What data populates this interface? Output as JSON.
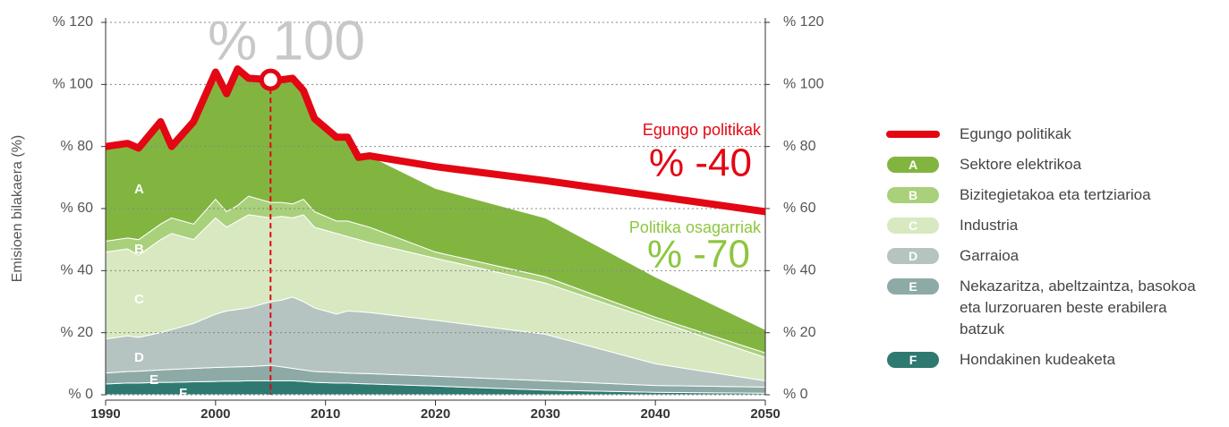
{
  "chart_data": {
    "type": "area",
    "y_label": "Emisioen bilakaera  (%)",
    "x": [
      1990,
      1992,
      1993,
      1995,
      1996,
      1998,
      2000,
      2001,
      2002,
      2003,
      2005,
      2006,
      2007,
      2008,
      2009,
      2011,
      2012,
      2013,
      2014,
      2020,
      2030,
      2040,
      2050
    ],
    "xlim": [
      1990,
      2050
    ],
    "xticks": [
      1990,
      2000,
      2010,
      2020,
      2030,
      2040,
      2050
    ],
    "ylim": [
      0,
      120
    ],
    "yticks": [
      {
        "value": 0,
        "label": "% 0"
      },
      {
        "value": 20,
        "label": "% 20"
      },
      {
        "value": 40,
        "label": "% 40"
      },
      {
        "value": 60,
        "label": "% 60"
      },
      {
        "value": 80,
        "label": "% 80"
      },
      {
        "value": 100,
        "label": "% 100"
      },
      {
        "value": 120,
        "label": "% 120"
      }
    ],
    "grid": true,
    "series": [
      {
        "name": "Egungo politikak",
        "type": "line",
        "color": "#e30613",
        "values": [
          80,
          81,
          79.5,
          88,
          80,
          88,
          104,
          97,
          105,
          102,
          101.5,
          101.5,
          102,
          98,
          89,
          83,
          83,
          76.5,
          77,
          73.5,
          69,
          64,
          59
        ]
      },
      {
        "name": "Sektore elektrikoa",
        "label": "A",
        "color": "#82b540",
        "values": [
          30.5,
          30.5,
          29.5,
          33,
          23,
          33,
          41,
          38,
          44,
          38,
          39.5,
          39.5,
          40.5,
          35,
          30,
          27,
          27,
          21.5,
          23,
          20.5,
          19,
          13,
          7.5
        ]
      },
      {
        "name": "Bizitegietakoa eta tertziarioa",
        "label": "B",
        "color": "#a9d07a",
        "values": [
          3.5,
          3.5,
          5,
          5,
          5,
          5,
          6,
          5,
          5,
          6,
          5,
          4.5,
          4.5,
          5,
          5,
          4,
          5,
          5,
          5,
          2,
          2,
          1,
          1.5
        ]
      },
      {
        "name": "Industria",
        "label": "C",
        "color": "#d8e8c0",
        "values": [
          28,
          28,
          26.5,
          30,
          31,
          27,
          31,
          27,
          28.5,
          30,
          27,
          27,
          25.5,
          28,
          26,
          26,
          24,
          23.2,
          22.5,
          20,
          16.5,
          14,
          7.5
        ]
      },
      {
        "name": "Garraioa",
        "label": "D",
        "color": "#b5c4c1",
        "values": [
          11,
          11.5,
          10.9,
          12,
          12.8,
          14.5,
          17.2,
          18.1,
          18.5,
          18.9,
          20.5,
          21.5,
          23,
          22,
          20.5,
          18.8,
          20,
          19.9,
          19.7,
          18,
          15,
          7,
          2
        ]
      },
      {
        "name": "Nekazaritza, abeltzaintza, basokoa eta lurzoruaren beste erabilera batzuk",
        "label": "E",
        "color": "#8eaaa6",
        "values": [
          3.5,
          3.7,
          3.8,
          4,
          4.2,
          4.3,
          4.5,
          4.5,
          4.6,
          4.6,
          5,
          4.5,
          4,
          3.7,
          3.5,
          3.4,
          3.2,
          3.3,
          3.3,
          3.2,
          3,
          2.2,
          2
        ]
      },
      {
        "name": "Hondakinen kudeaketa",
        "label": "F",
        "color": "#2f7a70",
        "values": [
          3.5,
          3.8,
          3.8,
          4,
          4,
          4.2,
          4.3,
          4.4,
          4.4,
          4.5,
          4.5,
          4.5,
          4.5,
          4.3,
          4,
          3.8,
          3.8,
          3.6,
          3.5,
          2.8,
          1.5,
          0.8,
          0.5
        ]
      }
    ],
    "annotations": [
      {
        "text": "% 100",
        "color": "#c8c8c8"
      },
      {
        "text": "Egungo politikak",
        "color": "#e30613"
      },
      {
        "text": "% -40",
        "color": "#e30613"
      },
      {
        "text": "Politika osagarriak",
        "color": "#8dc63f"
      },
      {
        "text": "% -70",
        "color": "#8dc63f"
      }
    ]
  }
}
